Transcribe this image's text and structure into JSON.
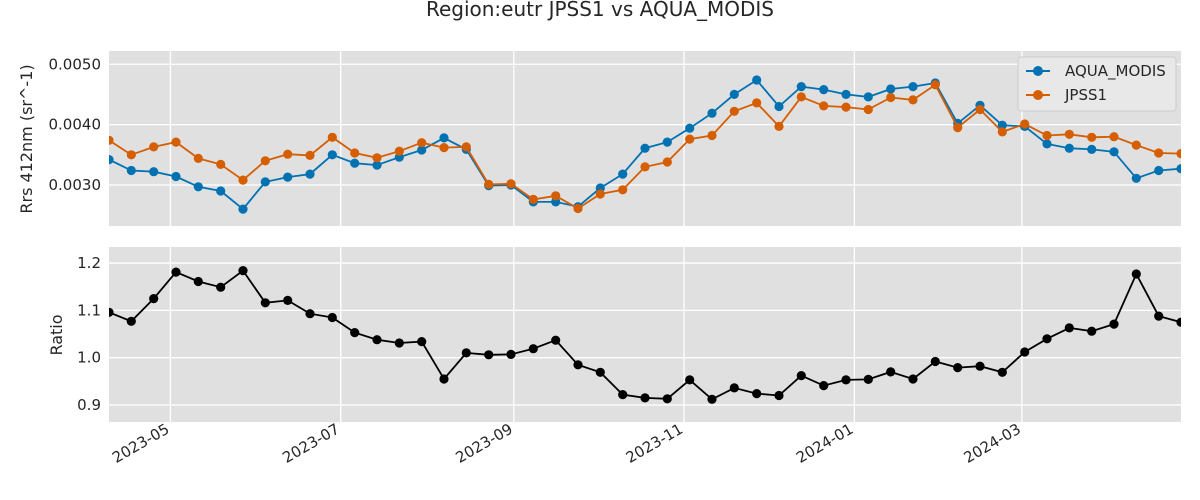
{
  "title": "Region:eutr JPSS1 vs AQUA_MODIS",
  "colors": {
    "aqua": "#0072b2",
    "jpss": "#d55e00",
    "ratio": "#000000",
    "panel_bg": "#e0e0e0",
    "grid": "#ffffff"
  },
  "chart_data": [
    {
      "type": "line",
      "ylabel": "Rrs 412nm (sr^-1)",
      "xlabel": "",
      "ylim": [
        0.00232,
        0.00522
      ],
      "yticks": [
        0.003,
        0.004,
        0.005
      ],
      "ytick_labels": [
        "0.0030",
        "0.0040",
        "0.0050"
      ],
      "grid": true,
      "legend": "top-right",
      "series": [
        {
          "name": "AQUA_MODIS",
          "values": [
            0.00342,
            0.00324,
            0.00322,
            0.00314,
            0.00297,
            0.0029,
            0.0026,
            0.00305,
            0.00313,
            0.00318,
            0.0035,
            0.00336,
            0.00333,
            0.00346,
            0.00358,
            0.00378,
            0.00359,
            0.00299,
            0.003,
            0.00272,
            0.00272,
            0.00264,
            0.00295,
            0.00318,
            0.00361,
            0.00371,
            0.00394,
            0.00419,
            0.0045,
            0.00474,
            0.0043,
            0.00463,
            0.00458,
            0.0045,
            0.00446,
            0.00459,
            0.00463,
            0.00469,
            0.00402,
            0.00432,
            0.00399,
            0.00397,
            0.00368,
            0.00361,
            0.00359,
            0.00355,
            0.00311,
            0.00324,
            0.00327
          ]
        },
        {
          "name": "JPSS1",
          "values": [
            0.00374,
            0.0035,
            0.00363,
            0.00371,
            0.00344,
            0.00334,
            0.00308,
            0.0034,
            0.00351,
            0.00349,
            0.00379,
            0.00353,
            0.00345,
            0.00356,
            0.0037,
            0.00362,
            0.00363,
            0.00301,
            0.00302,
            0.00276,
            0.00282,
            0.00261,
            0.00285,
            0.00292,
            0.0033,
            0.00338,
            0.00376,
            0.00382,
            0.00422,
            0.00436,
            0.00397,
            0.00446,
            0.00431,
            0.00429,
            0.00425,
            0.00445,
            0.00441,
            0.00466,
            0.00395,
            0.00425,
            0.00388,
            0.00401,
            0.00382,
            0.00384,
            0.00379,
            0.0038,
            0.00366,
            0.00353,
            0.00352
          ]
        }
      ]
    },
    {
      "type": "line",
      "ylabel": "Ratio",
      "xlabel": "",
      "ylim": [
        0.864,
        1.234
      ],
      "yticks": [
        0.9,
        1.0,
        1.1,
        1.2
      ],
      "ytick_labels": [
        "0.9",
        "1.0",
        "1.1",
        "1.2"
      ],
      "grid": true,
      "series": [
        {
          "values": [
            1.096,
            1.077,
            1.125,
            1.181,
            1.161,
            1.149,
            1.184,
            1.116,
            1.121,
            1.093,
            1.085,
            1.053,
            1.038,
            1.031,
            1.034,
            0.955,
            1.01,
            1.006,
            1.007,
            1.019,
            1.037,
            0.985,
            0.969,
            0.922,
            0.915,
            0.913,
            0.953,
            0.912,
            0.936,
            0.924,
            0.92,
            0.962,
            0.941,
            0.953,
            0.954,
            0.97,
            0.955,
            0.992,
            0.979,
            0.982,
            0.969,
            1.012,
            1.04,
            1.063,
            1.056,
            1.071,
            1.177,
            1.088,
            1.075
          ]
        }
      ]
    }
  ],
  "x": {
    "start": "2023-04-09",
    "step_days": 8,
    "xlim": [
      "2023-04-09",
      "2024-04-27"
    ],
    "ticks": [
      "2023-05-01",
      "2023-07-01",
      "2023-09-01",
      "2023-11-01",
      "2024-01-01",
      "2024-03-01"
    ],
    "tick_labels": [
      "2023-05",
      "2023-07",
      "2023-09",
      "2023-11",
      "2024-01",
      "2024-03"
    ]
  }
}
